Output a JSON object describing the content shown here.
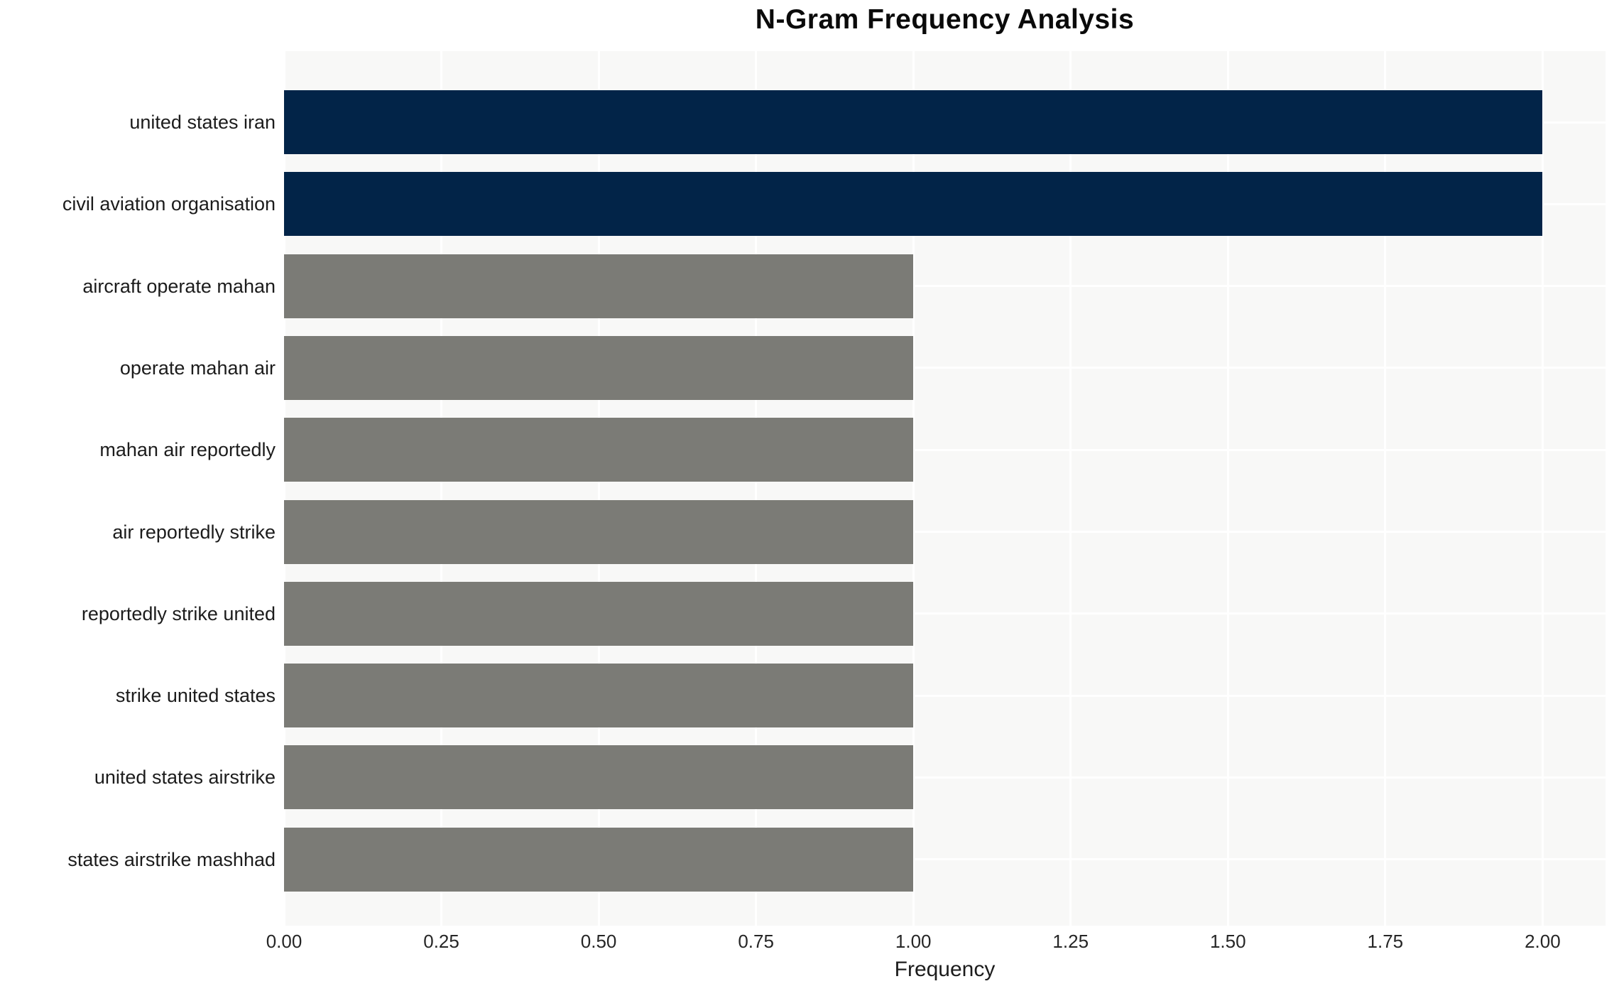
{
  "title": "N-Gram Frequency Analysis",
  "chart_data": {
    "type": "bar",
    "orientation": "horizontal",
    "title": "N-Gram Frequency Analysis",
    "xlabel": "Frequency",
    "ylabel": "",
    "categories": [
      "united states iran",
      "civil aviation organisation",
      "aircraft operate mahan",
      "operate mahan air",
      "mahan air reportedly",
      "air reportedly strike",
      "reportedly strike united",
      "strike united states",
      "united states airstrike",
      "states airstrike mashhad"
    ],
    "values": [
      2,
      2,
      1,
      1,
      1,
      1,
      1,
      1,
      1,
      1
    ],
    "bar_colors": [
      "#022448",
      "#022448",
      "#7b7b76",
      "#7b7b76",
      "#7b7b76",
      "#7b7b76",
      "#7b7b76",
      "#7b7b76",
      "#7b7b76",
      "#7b7b76"
    ],
    "xlim": [
      0,
      2.1
    ],
    "x_ticks": [
      0,
      0.25,
      0.5,
      0.75,
      1,
      1.25,
      1.5,
      1.75,
      2
    ],
    "x_tick_labels": [
      "0.00",
      "0.25",
      "0.50",
      "0.75",
      "1.00",
      "1.25",
      "1.50",
      "1.75",
      "2.00"
    ],
    "grid": true,
    "legend": false,
    "plot_bg": "#f8f8f7",
    "grid_color": "#ffffff"
  }
}
